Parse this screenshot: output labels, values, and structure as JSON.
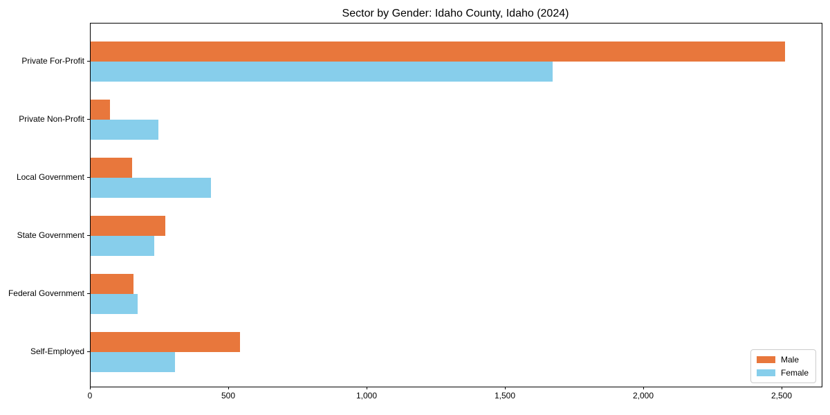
{
  "chart_data": {
    "type": "bar",
    "orientation": "horizontal",
    "title": "Sector by Gender: Idaho County, Idaho (2024)",
    "categories": [
      "Private For-Profit",
      "Private Non-Profit",
      "Local Government",
      "State Government",
      "Federal Government",
      "Self-Employed"
    ],
    "series": [
      {
        "name": "Male",
        "color": "#e8773c",
        "values": [
          2510,
          70,
          150,
          270,
          155,
          540
        ]
      },
      {
        "name": "Female",
        "color": "#87ceeb",
        "values": [
          1670,
          245,
          435,
          230,
          170,
          305
        ]
      }
    ],
    "xlabel": "",
    "ylabel": "",
    "xlim": [
      0,
      2642
    ],
    "x_ticks": [
      {
        "value": 0,
        "label": "0"
      },
      {
        "value": 500,
        "label": "500"
      },
      {
        "value": 1000,
        "label": "1,000"
      },
      {
        "value": 1500,
        "label": "1,500"
      },
      {
        "value": 2000,
        "label": "2,000"
      },
      {
        "value": 2500,
        "label": "2,500"
      }
    ],
    "grid": false,
    "legend_position": "lower right",
    "spine_color": "#000000",
    "background_color": "#ffffff"
  }
}
